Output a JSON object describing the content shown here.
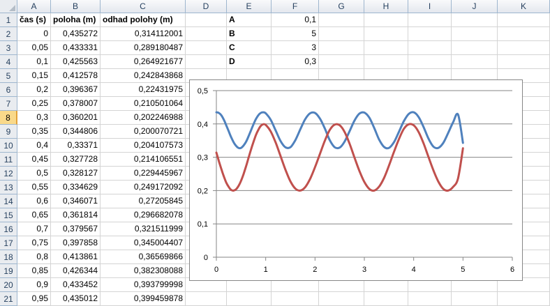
{
  "sheet": {
    "columns": [
      "A",
      "B",
      "C",
      "D",
      "E",
      "F",
      "G",
      "H",
      "I",
      "J",
      "K"
    ],
    "rows": [
      "1",
      "2",
      "3",
      "4",
      "5",
      "6",
      "7",
      "8",
      "9",
      "10",
      "11",
      "12",
      "13",
      "14",
      "15",
      "16",
      "17",
      "18",
      "19",
      "20",
      "21"
    ],
    "active_row": "8",
    "headers": [
      "čas (s)",
      "poloha (m)",
      "odhad polohy (m)"
    ],
    "data": [
      [
        "0",
        "0,435272",
        "0,314112001"
      ],
      [
        "0,05",
        "0,433331",
        "0,289180487"
      ],
      [
        "0,1",
        "0,425563",
        "0,264921677"
      ],
      [
        "0,15",
        "0,412578",
        "0,242843868"
      ],
      [
        "0,2",
        "0,396367",
        "0,22431975"
      ],
      [
        "0,25",
        "0,378007",
        "0,210501064"
      ],
      [
        "0,3",
        "0,360201",
        "0,202246988"
      ],
      [
        "0,35",
        "0,344806",
        "0,200070721"
      ],
      [
        "0,4",
        "0,33371",
        "0,204107573"
      ],
      [
        "0,45",
        "0,327728",
        "0,214106551"
      ],
      [
        "0,5",
        "0,328127",
        "0,229445967"
      ],
      [
        "0,55",
        "0,334629",
        "0,249172092"
      ],
      [
        "0,6",
        "0,346071",
        "0,27205845"
      ],
      [
        "0,65",
        "0,361814",
        "0,296682078"
      ],
      [
        "0,7",
        "0,379567",
        "0,321511999"
      ],
      [
        "0,75",
        "0,397858",
        "0,345004407"
      ],
      [
        "0,8",
        "0,413861",
        "0,36569866"
      ],
      [
        "0,85",
        "0,426344",
        "0,382308088"
      ],
      [
        "0,9",
        "0,433452",
        "0,393799998"
      ],
      [
        "0,95",
        "0,435012",
        "0,399459878"
      ]
    ],
    "params": [
      {
        "name": "A",
        "value": "0,1"
      },
      {
        "name": "B",
        "value": "5"
      },
      {
        "name": "C",
        "value": "3"
      },
      {
        "name": "D",
        "value": "0,3"
      }
    ]
  },
  "chart_data": {
    "type": "line",
    "xlim": [
      0,
      6
    ],
    "ylim": [
      0,
      0.5
    ],
    "x_ticks": [
      "0",
      "1",
      "2",
      "3",
      "4",
      "5",
      "6"
    ],
    "y_ticks": [
      "0",
      "0,1",
      "0,2",
      "0,3",
      "0,4",
      "0,5"
    ],
    "grid": "horizontal",
    "series": [
      {
        "color": "#4f81bd",
        "x": [
          0,
          0.05,
          0.1,
          0.15,
          0.2,
          0.25,
          0.3,
          0.35,
          0.4,
          0.45,
          0.5,
          0.55,
          0.6,
          0.65,
          0.7,
          0.75,
          0.8,
          0.85,
          0.9,
          0.95,
          1.0,
          1.1,
          1.2,
          1.3,
          1.4,
          1.5,
          1.6,
          1.7,
          1.8,
          1.9,
          2.0,
          2.1,
          2.2,
          2.3,
          2.4,
          2.5,
          2.6,
          2.7,
          2.8,
          2.9,
          3.0,
          3.1,
          3.2,
          3.3,
          3.4,
          3.5,
          3.6,
          3.7,
          3.8,
          3.9,
          4.0,
          4.1,
          4.2,
          4.3,
          4.4,
          4.5,
          4.6,
          4.7,
          4.8,
          4.9,
          5.0
        ],
        "values": [
          0.435,
          0.433,
          0.426,
          0.413,
          0.396,
          0.378,
          0.36,
          0.345,
          0.334,
          0.328,
          0.328,
          0.335,
          0.346,
          0.362,
          0.38,
          0.398,
          0.414,
          0.426,
          0.433,
          0.435,
          0.432,
          0.413,
          0.381,
          0.349,
          0.33,
          0.33,
          0.351,
          0.383,
          0.414,
          0.432,
          0.433,
          0.416,
          0.386,
          0.351,
          0.33,
          0.329,
          0.347,
          0.378,
          0.41,
          0.431,
          0.434,
          0.419,
          0.388,
          0.353,
          0.331,
          0.328,
          0.345,
          0.376,
          0.408,
          0.43,
          0.435,
          0.421,
          0.391,
          0.356,
          0.332,
          0.328,
          0.343,
          0.373,
          0.405,
          0.428,
          0.343
        ]
      },
      {
        "color": "#c0504d",
        "x": [
          0,
          0.05,
          0.1,
          0.15,
          0.2,
          0.25,
          0.3,
          0.35,
          0.4,
          0.45,
          0.5,
          0.55,
          0.6,
          0.65,
          0.7,
          0.75,
          0.8,
          0.85,
          0.9,
          0.95,
          1.0,
          1.1,
          1.2,
          1.3,
          1.4,
          1.5,
          1.6,
          1.7,
          1.8,
          1.9,
          2.0,
          2.1,
          2.2,
          2.3,
          2.4,
          2.5,
          2.6,
          2.7,
          2.8,
          2.9,
          3.0,
          3.1,
          3.2,
          3.3,
          3.4,
          3.5,
          3.6,
          3.7,
          3.8,
          3.9,
          4.0,
          4.1,
          4.2,
          4.3,
          4.4,
          4.5,
          4.6,
          4.7,
          4.8,
          4.9,
          5.0
        ],
        "values": [
          0.314,
          0.289,
          0.265,
          0.243,
          0.224,
          0.211,
          0.202,
          0.2,
          0.204,
          0.214,
          0.229,
          0.249,
          0.272,
          0.297,
          0.322,
          0.345,
          0.366,
          0.382,
          0.394,
          0.399,
          0.397,
          0.378,
          0.345,
          0.304,
          0.263,
          0.228,
          0.206,
          0.2,
          0.21,
          0.235,
          0.27,
          0.31,
          0.35,
          0.382,
          0.398,
          0.396,
          0.376,
          0.341,
          0.299,
          0.259,
          0.226,
          0.205,
          0.2,
          0.212,
          0.238,
          0.275,
          0.316,
          0.354,
          0.385,
          0.399,
          0.396,
          0.376,
          0.342,
          0.301,
          0.261,
          0.227,
          0.205,
          0.2,
          0.211,
          0.237,
          0.327
        ]
      }
    ]
  }
}
